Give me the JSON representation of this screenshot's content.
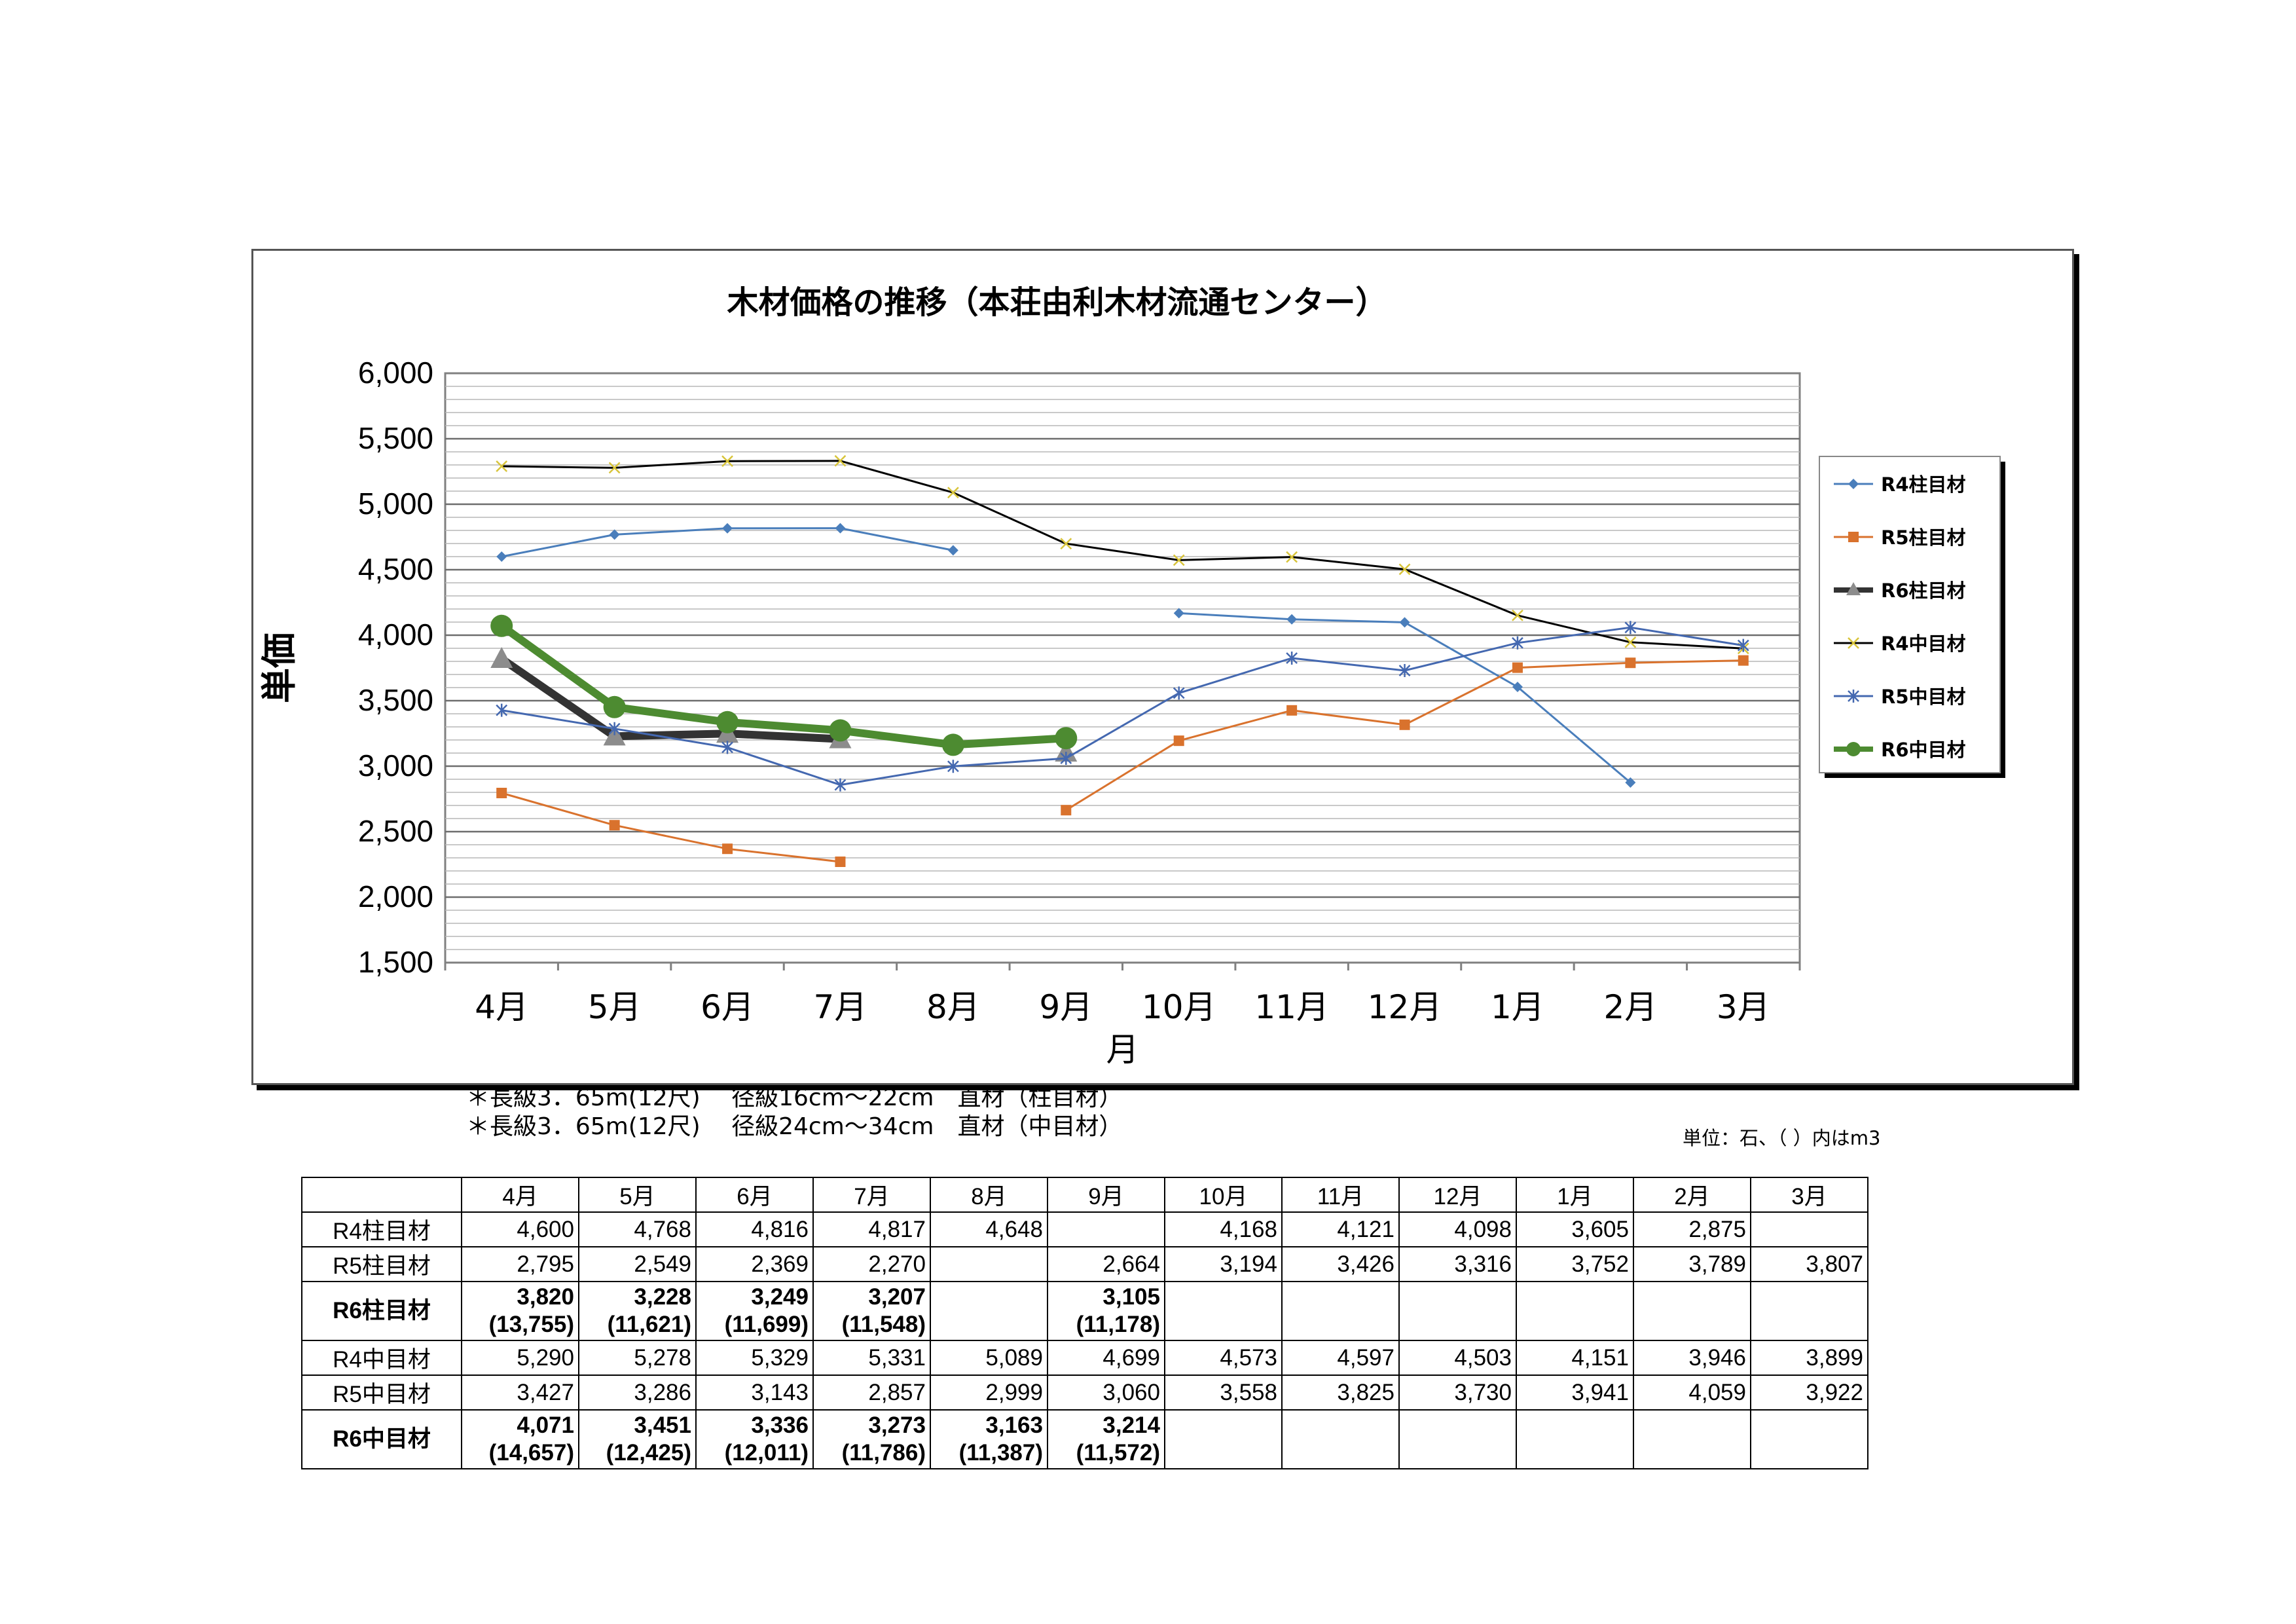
{
  "chart_data": {
    "type": "line",
    "title": "木材価格の推移（本荘由利木材流通センター）",
    "xlabel": "月",
    "ylabel": "単価",
    "ylim": [
      1500,
      6000
    ],
    "yticks": [
      "1,500",
      "2,000",
      "2,500",
      "3,000",
      "3,500",
      "4,000",
      "4,500",
      "5,000",
      "5,500",
      "6,000"
    ],
    "categories": [
      "4月",
      "5月",
      "6月",
      "7月",
      "8月",
      "9月",
      "10月",
      "11月",
      "12月",
      "1月",
      "2月",
      "3月"
    ],
    "legend_position": "right",
    "series": [
      {
        "name": "R4柱目材",
        "color": "#4a7ebb",
        "marker": "diamond",
        "width": 3,
        "values": [
          4600,
          4768,
          4816,
          4817,
          4648,
          null,
          4168,
          4121,
          4098,
          3605,
          2875,
          null
        ]
      },
      {
        "name": "R5柱目材",
        "color": "#d9722d",
        "marker": "square",
        "width": 3,
        "values": [
          2795,
          2549,
          2369,
          2270,
          null,
          2664,
          3194,
          3426,
          3316,
          3752,
          3789,
          3807
        ]
      },
      {
        "name": "R6柱目材",
        "color": "#333333",
        "marker": "triangle",
        "width": 12,
        "values": [
          3820,
          3228,
          3249,
          3207,
          null,
          3105,
          null,
          null,
          null,
          null,
          null,
          null
        ]
      },
      {
        "name": "R4中目材",
        "color": "#000000",
        "marker": "x",
        "width": 3,
        "values": [
          5290,
          5278,
          5329,
          5331,
          5089,
          4699,
          4573,
          4597,
          4503,
          4151,
          3946,
          3899
        ]
      },
      {
        "name": "R5中目材",
        "color": "#4468b0",
        "marker": "star",
        "width": 3,
        "values": [
          3427,
          3286,
          3143,
          2857,
          2999,
          3060,
          3558,
          3825,
          3730,
          3941,
          4059,
          3922
        ]
      },
      {
        "name": "R6中目材",
        "color": "#4d8b31",
        "marker": "circle",
        "width": 12,
        "values": [
          4071,
          3451,
          3336,
          3273,
          3163,
          3214,
          null,
          null,
          null,
          null,
          null,
          null
        ]
      }
    ]
  },
  "notes": {
    "line1": "＊長級3．65m(12尺)　 径級16cm～22cm　直材（柱目材）",
    "line2": "＊長級3．65m(12尺)　 径級24cm～34cm　直材（中目材）",
    "unit": "単位：石、（ ）内はm3"
  },
  "table": {
    "headers": [
      "4月",
      "5月",
      "6月",
      "7月",
      "8月",
      "9月",
      "10月",
      "11月",
      "12月",
      "1月",
      "2月",
      "3月"
    ],
    "rows": [
      {
        "label": "R4柱目材",
        "bold": false,
        "cells": [
          "4,600",
          "4,768",
          "4,816",
          "4,817",
          "4,648",
          "",
          "4,168",
          "4,121",
          "4,098",
          "3,605",
          "2,875",
          ""
        ]
      },
      {
        "label": "R5柱目材",
        "bold": false,
        "cells": [
          "2,795",
          "2,549",
          "2,369",
          "2,270",
          "",
          "2,664",
          "3,194",
          "3,426",
          "3,316",
          "3,752",
          "3,789",
          "3,807"
        ]
      },
      {
        "label": "R6柱目材",
        "bold": true,
        "cells": [
          "3,820",
          "3,228",
          "3,249",
          "3,207",
          "",
          "3,105",
          "",
          "",
          "",
          "",
          "",
          ""
        ],
        "sub": [
          "(13,755)",
          "(11,621)",
          "(11,699)",
          "(11,548)",
          "",
          "(11,178)",
          "",
          "",
          "",
          "",
          "",
          ""
        ]
      },
      {
        "label": "R4中目材",
        "bold": false,
        "cells": [
          "5,290",
          "5,278",
          "5,329",
          "5,331",
          "5,089",
          "4,699",
          "4,573",
          "4,597",
          "4,503",
          "4,151",
          "3,946",
          "3,899"
        ]
      },
      {
        "label": "R5中目材",
        "bold": false,
        "cells": [
          "3,427",
          "3,286",
          "3,143",
          "2,857",
          "2,999",
          "3,060",
          "3,558",
          "3,825",
          "3,730",
          "3,941",
          "4,059",
          "3,922"
        ]
      },
      {
        "label": "R6中目材",
        "bold": true,
        "cells": [
          "4,071",
          "3,451",
          "3,336",
          "3,273",
          "3,163",
          "3,214",
          "",
          "",
          "",
          "",
          "",
          ""
        ],
        "sub": [
          "(14,657)",
          "(12,425)",
          "(12,011)",
          "(11,786)",
          "(11,387)",
          "(11,572)",
          "",
          "",
          "",
          "",
          "",
          ""
        ]
      }
    ]
  }
}
